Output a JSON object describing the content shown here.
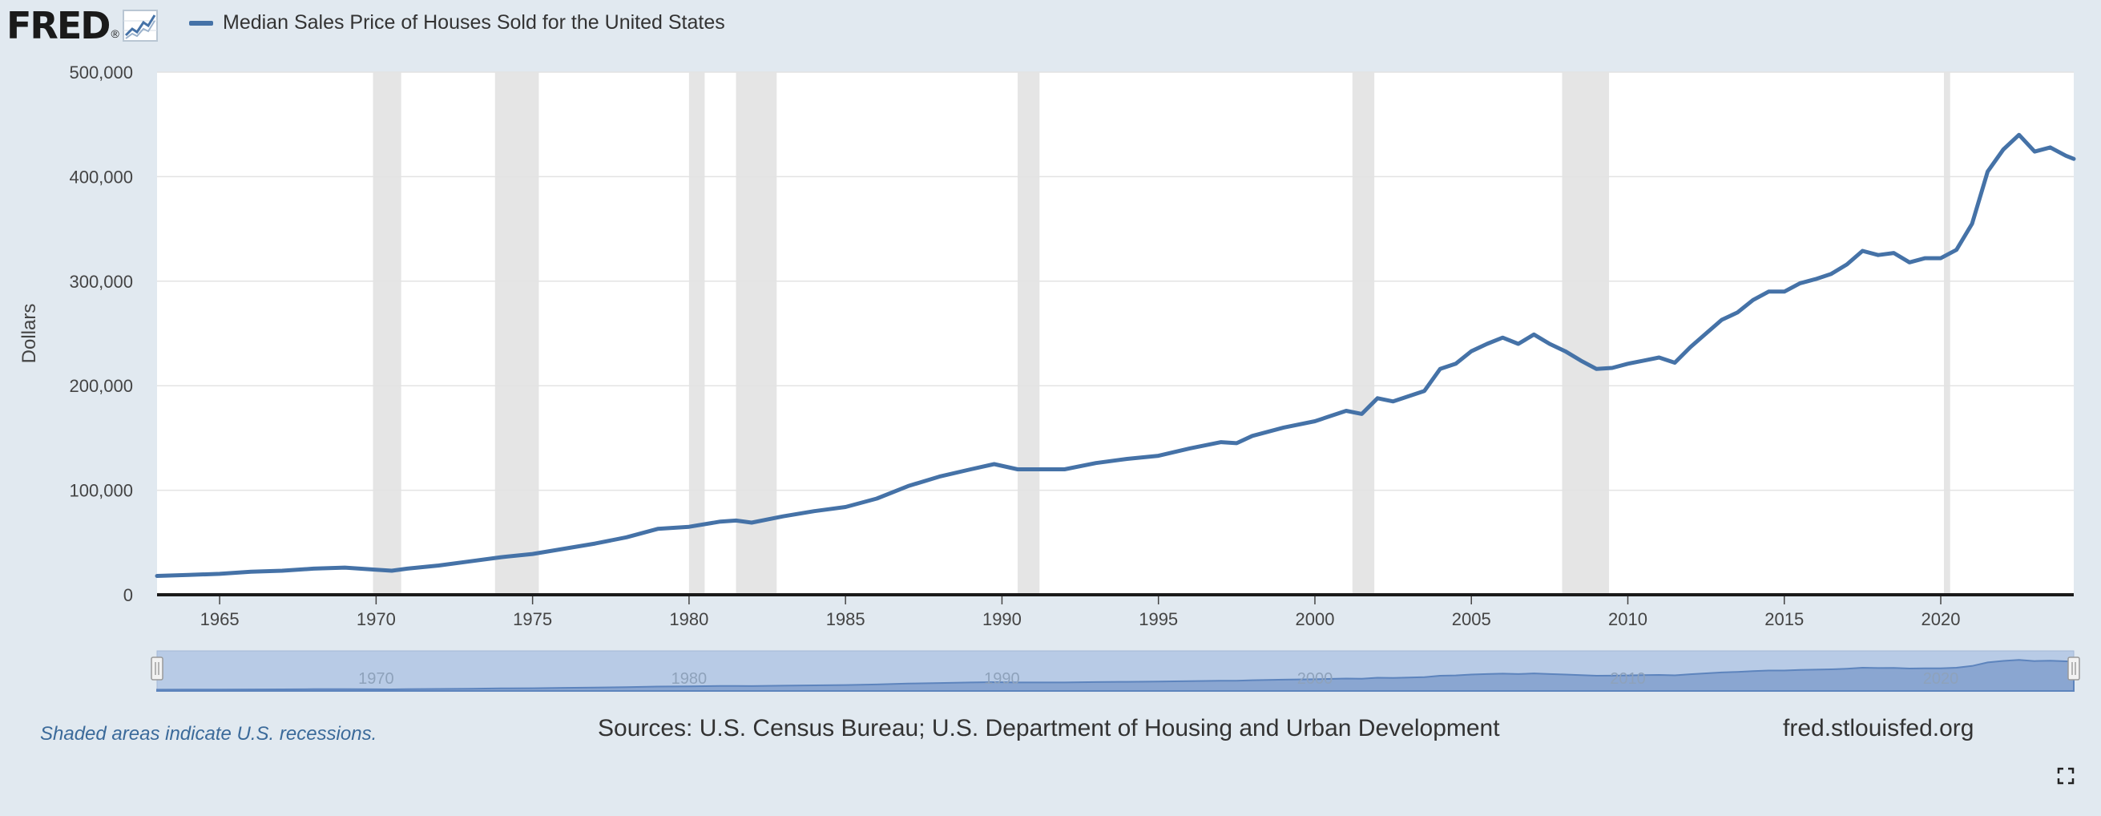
{
  "header": {
    "logo_text": "FRED",
    "logo_reg": "®",
    "legend_label": "Median Sales Price of Houses Sold for the United States",
    "series_color": "#4572a7"
  },
  "footer": {
    "recession_note": "Shaded areas indicate U.S. recessions.",
    "sources": "Sources: U.S. Census Bureau; U.S. Department of Housing and Urban Development",
    "site": "fred.stlouisfed.org"
  },
  "chart_data": {
    "type": "line",
    "title": "Median Sales Price of Houses Sold for the United States",
    "xlabel": "",
    "ylabel": "Dollars",
    "xlim": [
      1963.0,
      2024.25
    ],
    "ylim": [
      0,
      500000
    ],
    "yticks": [
      0,
      100000,
      200000,
      300000,
      400000,
      500000
    ],
    "ytick_labels": [
      "0",
      "100,000",
      "200,000",
      "300,000",
      "400,000",
      "500,000"
    ],
    "xticks": [
      1965,
      1970,
      1975,
      1980,
      1985,
      1990,
      1995,
      2000,
      2005,
      2010,
      2015,
      2020
    ],
    "navigator_ticks": [
      1970,
      1980,
      1990,
      2000,
      2010,
      2020
    ],
    "grid": true,
    "recessions": [
      [
        1969.9,
        1970.8
      ],
      [
        1973.8,
        1975.2
      ],
      [
        1980.0,
        1980.5
      ],
      [
        1981.5,
        1982.8
      ],
      [
        1990.5,
        1991.2
      ],
      [
        2001.2,
        2001.9
      ],
      [
        2007.9,
        2009.4
      ],
      [
        2020.1,
        2020.3
      ]
    ],
    "series": [
      {
        "name": "Median Sales Price of Houses Sold for the United States",
        "x": [
          1963.0,
          1964.0,
          1965.0,
          1966.0,
          1967.0,
          1968.0,
          1969.0,
          1970.0,
          1970.5,
          1971.0,
          1972.0,
          1973.0,
          1974.0,
          1975.0,
          1976.0,
          1977.0,
          1978.0,
          1979.0,
          1980.0,
          1981.0,
          1981.5,
          1982.0,
          1983.0,
          1984.0,
          1985.0,
          1986.0,
          1987.0,
          1988.0,
          1989.0,
          1989.75,
          1990.5,
          1991.0,
          1992.0,
          1993.0,
          1994.0,
          1995.0,
          1996.0,
          1997.0,
          1997.5,
          1998.0,
          1999.0,
          2000.0,
          2001.0,
          2001.5,
          2002.0,
          2002.5,
          2003.0,
          2003.5,
          2004.0,
          2004.5,
          2005.0,
          2005.5,
          2006.0,
          2006.5,
          2007.0,
          2007.5,
          2008.0,
          2008.5,
          2009.0,
          2009.5,
          2010.0,
          2010.5,
          2011.0,
          2011.5,
          2012.0,
          2012.5,
          2013.0,
          2013.5,
          2014.0,
          2014.5,
          2015.0,
          2015.5,
          2016.0,
          2016.5,
          2017.0,
          2017.5,
          2018.0,
          2018.5,
          2019.0,
          2019.5,
          2020.0,
          2020.5,
          2021.0,
          2021.5,
          2022.0,
          2022.5,
          2023.0,
          2023.5,
          2024.0,
          2024.25
        ],
        "values": [
          18000,
          19000,
          20000,
          22000,
          23000,
          25000,
          26000,
          24000,
          23000,
          25000,
          28000,
          32000,
          36000,
          39000,
          44000,
          49000,
          55000,
          63000,
          65000,
          70000,
          71000,
          69000,
          75000,
          80000,
          84000,
          92000,
          104000,
          113000,
          120000,
          125000,
          120000,
          120000,
          120000,
          126000,
          130000,
          133000,
          140000,
          146000,
          145000,
          152000,
          160000,
          166000,
          176000,
          173000,
          188000,
          185000,
          190000,
          195000,
          216000,
          221000,
          233000,
          240000,
          246000,
          240000,
          249000,
          240000,
          233000,
          224000,
          216000,
          217000,
          221000,
          224000,
          227000,
          222000,
          237000,
          250000,
          263000,
          270000,
          282000,
          290000,
          290000,
          298000,
          302000,
          307000,
          316000,
          329000,
          325000,
          327000,
          318000,
          322000,
          322000,
          330000,
          355000,
          405000,
          426000,
          440000,
          424000,
          428000,
          420000,
          417000
        ]
      }
    ]
  }
}
